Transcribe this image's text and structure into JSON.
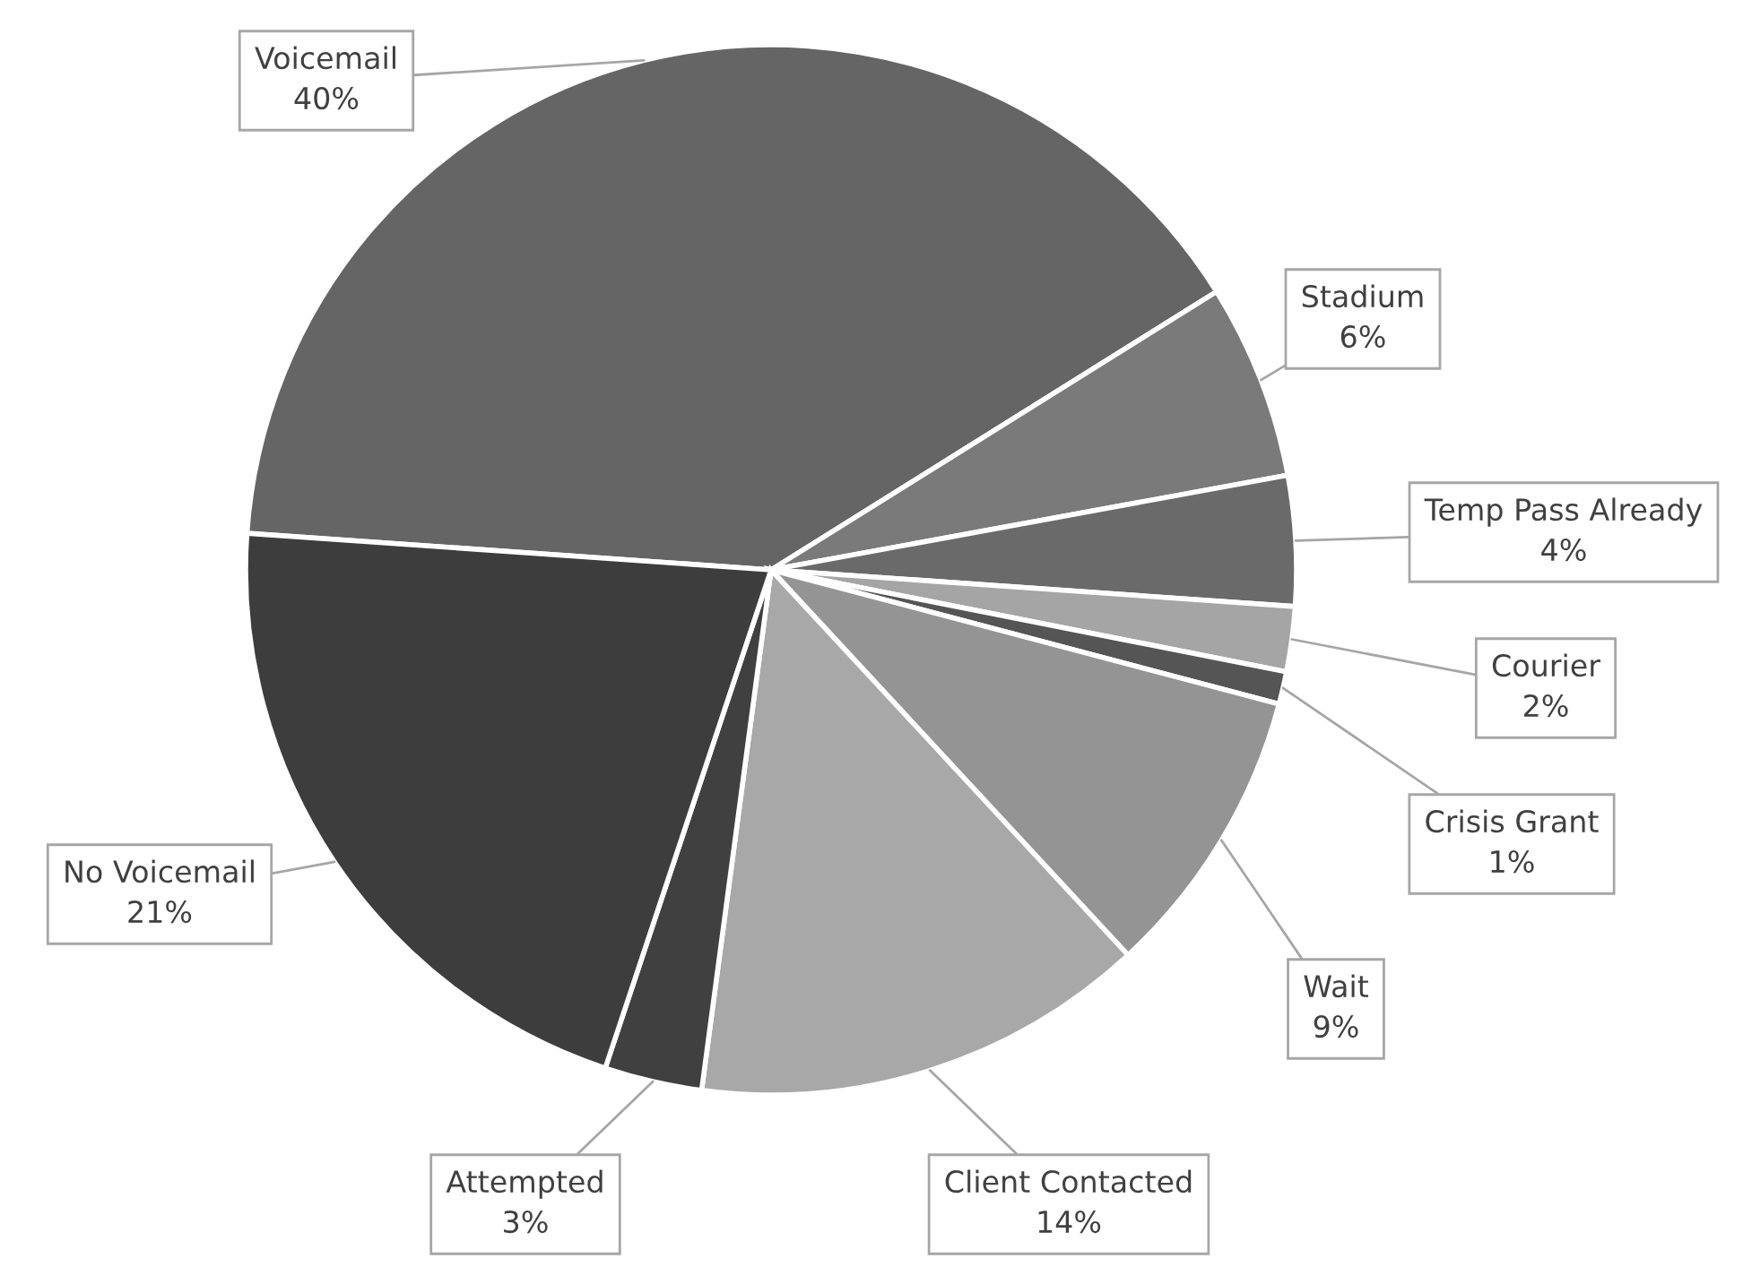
{
  "chart_data": {
    "type": "pie",
    "categories": [
      "Voicemail",
      "Stadium",
      "Temp Pass Already",
      "Courier",
      "Crisis Grant",
      "Wait",
      "Client Contacted",
      "Attempted",
      "No Voicemail"
    ],
    "values": [
      40,
      6,
      4,
      2,
      1,
      9,
      14,
      3,
      21
    ],
    "colors": [
      "#656565",
      "#7a7a7a",
      "#6a6a6a",
      "#a5a5a5",
      "#555555",
      "#949494",
      "#a8a8a8",
      "#404040",
      "#3d3d3d"
    ],
    "value_labels": [
      "40%",
      "6%",
      "4%",
      "2%",
      "1%",
      "9%",
      "14%",
      "3%",
      "21%"
    ],
    "legend": false
  }
}
